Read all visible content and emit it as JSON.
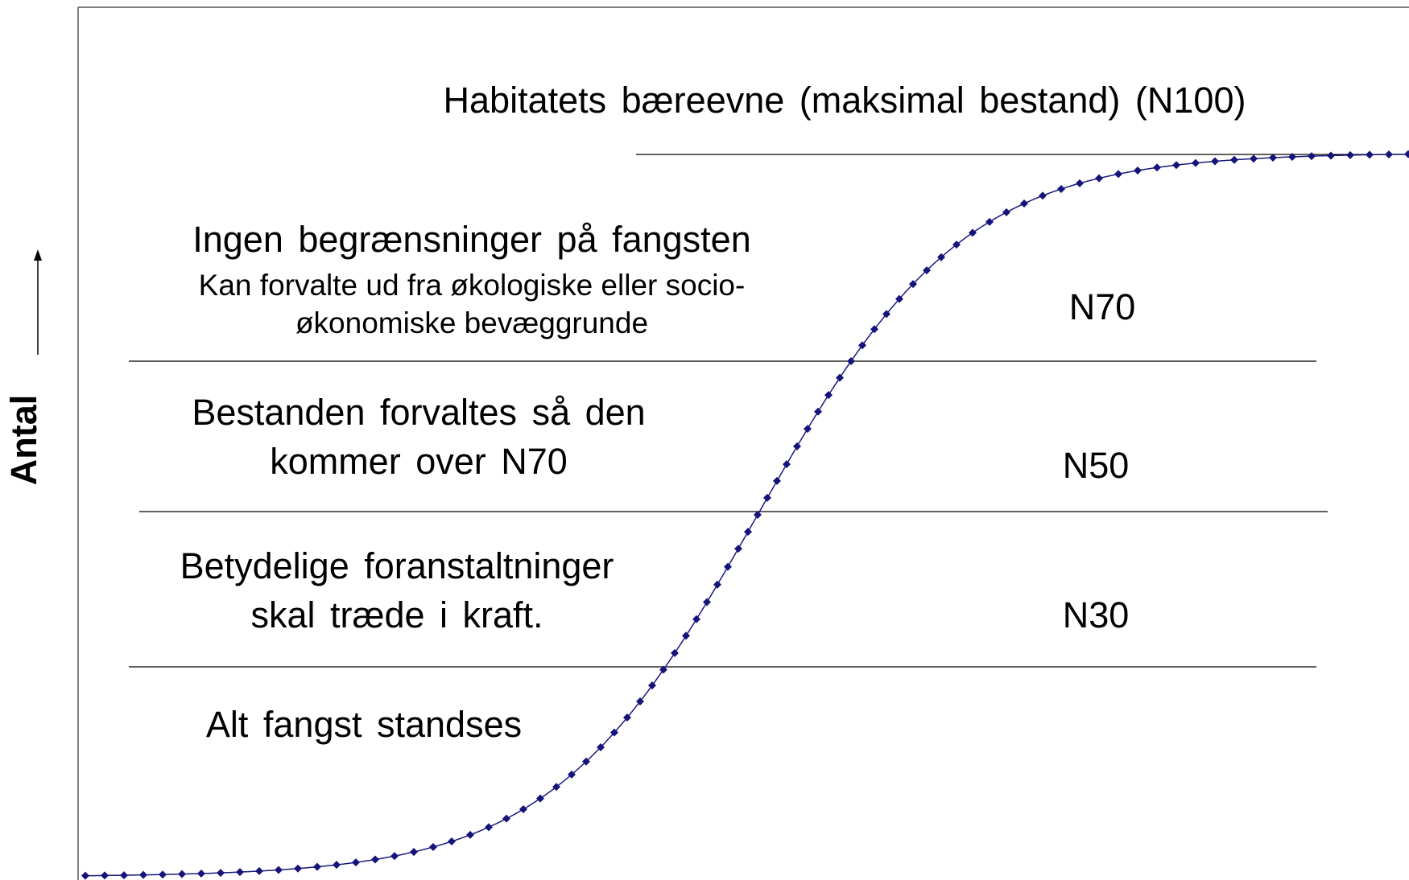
{
  "axis_label": "Antal",
  "carrying_capacity": "Habitatets bæreevne (maksimal bestand) (N100)",
  "zones": [
    {
      "title": "Ingen begrænsninger på fangsten",
      "subtitle": [
        "Kan forvalte ud fra økologiske eller socio-",
        "økonomiske bevæggrunde"
      ],
      "level": "N70"
    },
    {
      "title": [
        "Bestanden forvaltes så den",
        "kommer over N70"
      ],
      "level": "N50"
    },
    {
      "title": [
        "Betydelige foranstaltninger",
        "skal træde i kraft."
      ],
      "level": "N30"
    },
    {
      "title": "Alt fangst standses"
    }
  ]
}
